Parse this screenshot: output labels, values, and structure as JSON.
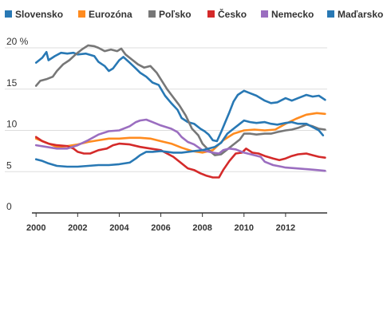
{
  "chart_data": {
    "type": "line",
    "title": "",
    "xlabel": "",
    "ylabel": "",
    "xlim": [
      1999.8,
      2014.0
    ],
    "ylim": [
      0,
      20
    ],
    "y_ticks": [
      {
        "value": 0,
        "label": "0"
      },
      {
        "value": 5,
        "label": "5"
      },
      {
        "value": 10,
        "label": "10"
      },
      {
        "value": 15,
        "label": "15"
      },
      {
        "value": 20,
        "label": "20 %"
      }
    ],
    "x_ticks": [
      {
        "value": 2000,
        "label": "2000"
      },
      {
        "value": 2002,
        "label": "2002"
      },
      {
        "value": 2004,
        "label": "2004"
      },
      {
        "value": 2006,
        "label": "2006"
      },
      {
        "value": 2008,
        "label": "2008"
      },
      {
        "value": 2010,
        "label": "2010"
      },
      {
        "value": 2012,
        "label": "2012"
      }
    ],
    "grid": "horizontal",
    "legend": "top",
    "series": [
      {
        "name": "Slovensko",
        "color": "#2878b4",
        "points": [
          [
            2000.0,
            18.2
          ],
          [
            2000.3,
            18.8
          ],
          [
            2000.5,
            19.5
          ],
          [
            2000.6,
            18.5
          ],
          [
            2000.9,
            19.0
          ],
          [
            2001.2,
            19.4
          ],
          [
            2001.5,
            19.3
          ],
          [
            2001.8,
            19.4
          ],
          [
            2002.0,
            19.2
          ],
          [
            2002.4,
            19.3
          ],
          [
            2002.8,
            19.0
          ],
          [
            2003.0,
            18.3
          ],
          [
            2003.3,
            17.8
          ],
          [
            2003.5,
            17.2
          ],
          [
            2003.7,
            17.5
          ],
          [
            2004.0,
            18.5
          ],
          [
            2004.2,
            18.9
          ],
          [
            2004.5,
            18.2
          ],
          [
            2004.8,
            17.5
          ],
          [
            2005.0,
            17.0
          ],
          [
            2005.3,
            16.5
          ],
          [
            2005.6,
            15.8
          ],
          [
            2005.9,
            15.5
          ],
          [
            2006.2,
            14.2
          ],
          [
            2006.5,
            13.3
          ],
          [
            2006.8,
            12.5
          ],
          [
            2007.0,
            11.5
          ],
          [
            2007.3,
            11.0
          ],
          [
            2007.6,
            10.8
          ],
          [
            2007.9,
            10.2
          ],
          [
            2008.1,
            9.9
          ],
          [
            2008.3,
            9.5
          ],
          [
            2008.5,
            8.8
          ],
          [
            2008.7,
            8.7
          ],
          [
            2008.9,
            9.8
          ],
          [
            2009.1,
            11.0
          ],
          [
            2009.3,
            12.2
          ],
          [
            2009.5,
            13.5
          ],
          [
            2009.7,
            14.3
          ],
          [
            2010.0,
            14.8
          ],
          [
            2010.3,
            14.5
          ],
          [
            2010.6,
            14.2
          ],
          [
            2011.0,
            13.6
          ],
          [
            2011.3,
            13.3
          ],
          [
            2011.6,
            13.4
          ],
          [
            2012.0,
            13.9
          ],
          [
            2012.3,
            13.6
          ],
          [
            2012.6,
            13.9
          ],
          [
            2013.0,
            14.3
          ],
          [
            2013.3,
            14.1
          ],
          [
            2013.6,
            14.2
          ],
          [
            2013.9,
            13.7
          ]
        ]
      },
      {
        "name": "Eurozóna",
        "color": "#ff8b1f",
        "points": [
          [
            2000.0,
            9.0
          ],
          [
            2000.5,
            8.5
          ],
          [
            2001.0,
            8.0
          ],
          [
            2001.5,
            8.1
          ],
          [
            2002.0,
            8.3
          ],
          [
            2002.5,
            8.6
          ],
          [
            2003.0,
            8.8
          ],
          [
            2003.5,
            9.0
          ],
          [
            2004.0,
            9.0
          ],
          [
            2004.5,
            9.1
          ],
          [
            2005.0,
            9.1
          ],
          [
            2005.5,
            9.0
          ],
          [
            2006.0,
            8.7
          ],
          [
            2006.5,
            8.4
          ],
          [
            2007.0,
            7.9
          ],
          [
            2007.5,
            7.5
          ],
          [
            2008.0,
            7.3
          ],
          [
            2008.5,
            7.6
          ],
          [
            2009.0,
            8.8
          ],
          [
            2009.5,
            9.6
          ],
          [
            2010.0,
            10.0
          ],
          [
            2010.5,
            10.1
          ],
          [
            2011.0,
            10.0
          ],
          [
            2011.5,
            10.1
          ],
          [
            2012.0,
            10.8
          ],
          [
            2012.5,
            11.4
          ],
          [
            2013.0,
            11.9
          ],
          [
            2013.5,
            12.1
          ],
          [
            2013.9,
            12.0
          ]
        ]
      },
      {
        "name": "Poľsko",
        "color": "#777777",
        "points": [
          [
            2000.0,
            15.4
          ],
          [
            2000.2,
            16.0
          ],
          [
            2000.5,
            16.2
          ],
          [
            2000.8,
            16.5
          ],
          [
            2001.0,
            17.2
          ],
          [
            2001.3,
            18.0
          ],
          [
            2001.6,
            18.5
          ],
          [
            2001.9,
            19.2
          ],
          [
            2002.2,
            19.8
          ],
          [
            2002.5,
            20.3
          ],
          [
            2002.8,
            20.2
          ],
          [
            2003.0,
            20.0
          ],
          [
            2003.3,
            19.6
          ],
          [
            2003.6,
            19.8
          ],
          [
            2003.9,
            19.6
          ],
          [
            2004.1,
            19.9
          ],
          [
            2004.3,
            19.2
          ],
          [
            2004.6,
            18.6
          ],
          [
            2004.9,
            18.0
          ],
          [
            2005.2,
            17.6
          ],
          [
            2005.5,
            17.8
          ],
          [
            2005.8,
            17.0
          ],
          [
            2006.0,
            16.2
          ],
          [
            2006.3,
            15.0
          ],
          [
            2006.6,
            14.0
          ],
          [
            2006.9,
            13.0
          ],
          [
            2007.2,
            11.8
          ],
          [
            2007.5,
            10.2
          ],
          [
            2007.8,
            9.4
          ],
          [
            2008.0,
            8.4
          ],
          [
            2008.3,
            7.6
          ],
          [
            2008.6,
            7.0
          ],
          [
            2008.9,
            7.1
          ],
          [
            2009.2,
            7.7
          ],
          [
            2009.5,
            8.3
          ],
          [
            2009.8,
            8.9
          ],
          [
            2010.0,
            9.6
          ],
          [
            2010.3,
            9.6
          ],
          [
            2010.6,
            9.5
          ],
          [
            2011.0,
            9.6
          ],
          [
            2011.3,
            9.6
          ],
          [
            2011.6,
            9.8
          ],
          [
            2012.0,
            10.0
          ],
          [
            2012.3,
            10.1
          ],
          [
            2012.6,
            10.3
          ],
          [
            2013.0,
            10.7
          ],
          [
            2013.3,
            10.5
          ],
          [
            2013.6,
            10.2
          ],
          [
            2013.9,
            10.1
          ]
        ]
      },
      {
        "name": "Česko",
        "color": "#d42a2a",
        "points": [
          [
            2000.0,
            9.2
          ],
          [
            2000.3,
            8.7
          ],
          [
            2000.6,
            8.4
          ],
          [
            2001.0,
            8.2
          ],
          [
            2001.5,
            8.1
          ],
          [
            2001.8,
            7.8
          ],
          [
            2002.0,
            7.4
          ],
          [
            2002.3,
            7.2
          ],
          [
            2002.6,
            7.2
          ],
          [
            2003.0,
            7.6
          ],
          [
            2003.4,
            7.8
          ],
          [
            2003.7,
            8.2
          ],
          [
            2004.0,
            8.4
          ],
          [
            2004.5,
            8.3
          ],
          [
            2005.0,
            8.0
          ],
          [
            2005.5,
            7.8
          ],
          [
            2006.0,
            7.6
          ],
          [
            2006.3,
            7.2
          ],
          [
            2006.6,
            6.8
          ],
          [
            2007.0,
            6.0
          ],
          [
            2007.3,
            5.4
          ],
          [
            2007.6,
            5.2
          ],
          [
            2007.9,
            4.8
          ],
          [
            2008.2,
            4.5
          ],
          [
            2008.5,
            4.3
          ],
          [
            2008.8,
            4.3
          ],
          [
            2009.0,
            5.2
          ],
          [
            2009.3,
            6.3
          ],
          [
            2009.6,
            7.2
          ],
          [
            2009.9,
            7.3
          ],
          [
            2010.1,
            7.8
          ],
          [
            2010.4,
            7.3
          ],
          [
            2010.7,
            7.2
          ],
          [
            2011.0,
            6.9
          ],
          [
            2011.4,
            6.6
          ],
          [
            2011.7,
            6.4
          ],
          [
            2012.0,
            6.6
          ],
          [
            2012.3,
            6.9
          ],
          [
            2012.6,
            7.1
          ],
          [
            2013.0,
            7.2
          ],
          [
            2013.3,
            7.0
          ],
          [
            2013.6,
            6.8
          ],
          [
            2013.9,
            6.7
          ]
        ]
      },
      {
        "name": "Nemecko",
        "color": "#9b6ec0",
        "points": [
          [
            2000.0,
            8.2
          ],
          [
            2000.5,
            8.0
          ],
          [
            2001.0,
            7.8
          ],
          [
            2001.5,
            7.8
          ],
          [
            2002.0,
            8.2
          ],
          [
            2002.5,
            8.8
          ],
          [
            2003.0,
            9.5
          ],
          [
            2003.5,
            9.9
          ],
          [
            2004.0,
            10.0
          ],
          [
            2004.5,
            10.5
          ],
          [
            2004.8,
            11.0
          ],
          [
            2005.0,
            11.2
          ],
          [
            2005.3,
            11.3
          ],
          [
            2005.6,
            11.0
          ],
          [
            2006.0,
            10.6
          ],
          [
            2006.5,
            10.2
          ],
          [
            2006.8,
            9.8
          ],
          [
            2007.0,
            9.2
          ],
          [
            2007.3,
            8.6
          ],
          [
            2007.6,
            8.3
          ],
          [
            2008.0,
            7.6
          ],
          [
            2008.5,
            7.3
          ],
          [
            2008.8,
            7.2
          ],
          [
            2009.0,
            7.6
          ],
          [
            2009.3,
            7.8
          ],
          [
            2009.6,
            7.7
          ],
          [
            2010.0,
            7.3
          ],
          [
            2010.5,
            7.0
          ],
          [
            2010.8,
            6.8
          ],
          [
            2011.0,
            6.2
          ],
          [
            2011.4,
            5.8
          ],
          [
            2011.8,
            5.6
          ],
          [
            2012.0,
            5.5
          ],
          [
            2012.5,
            5.4
          ],
          [
            2013.0,
            5.3
          ],
          [
            2013.5,
            5.2
          ],
          [
            2013.9,
            5.1
          ]
        ]
      },
      {
        "name": "Maďarsko",
        "color": "#2878b4",
        "points": [
          [
            2000.0,
            6.5
          ],
          [
            2000.3,
            6.3
          ],
          [
            2000.6,
            6.0
          ],
          [
            2001.0,
            5.7
          ],
          [
            2001.5,
            5.6
          ],
          [
            2002.0,
            5.6
          ],
          [
            2002.5,
            5.7
          ],
          [
            2003.0,
            5.8
          ],
          [
            2003.5,
            5.8
          ],
          [
            2004.0,
            5.9
          ],
          [
            2004.5,
            6.1
          ],
          [
            2004.8,
            6.6
          ],
          [
            2005.0,
            7.0
          ],
          [
            2005.3,
            7.4
          ],
          [
            2005.6,
            7.4
          ],
          [
            2006.0,
            7.5
          ],
          [
            2006.3,
            7.4
          ],
          [
            2006.6,
            7.3
          ],
          [
            2007.0,
            7.3
          ],
          [
            2007.3,
            7.4
          ],
          [
            2007.6,
            7.5
          ],
          [
            2008.0,
            7.6
          ],
          [
            2008.3,
            7.8
          ],
          [
            2008.6,
            8.0
          ],
          [
            2008.9,
            8.5
          ],
          [
            2009.2,
            9.6
          ],
          [
            2009.5,
            10.2
          ],
          [
            2009.8,
            10.8
          ],
          [
            2010.0,
            11.2
          ],
          [
            2010.3,
            11.0
          ],
          [
            2010.6,
            10.9
          ],
          [
            2011.0,
            11.0
          ],
          [
            2011.3,
            10.8
          ],
          [
            2011.6,
            10.7
          ],
          [
            2012.0,
            10.9
          ],
          [
            2012.3,
            11.0
          ],
          [
            2012.6,
            10.8
          ],
          [
            2013.0,
            10.8
          ],
          [
            2013.3,
            10.4
          ],
          [
            2013.6,
            10.0
          ],
          [
            2013.8,
            9.4
          ]
        ]
      }
    ]
  }
}
